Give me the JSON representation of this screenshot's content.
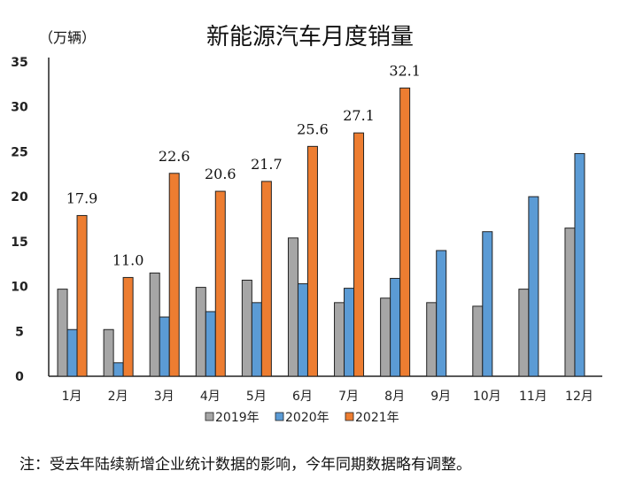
{
  "chart_data": {
    "type": "bar",
    "title": "新能源汽车月度销量",
    "ylabel": "（万辆）",
    "ylim": [
      0,
      35
    ],
    "yticks": [
      0,
      5,
      10,
      15,
      20,
      25,
      30,
      35
    ],
    "grid": false,
    "legend_position": "bottom",
    "categories": [
      "1月",
      "2月",
      "3月",
      "4月",
      "5月",
      "6月",
      "7月",
      "8月",
      "9月",
      "10月",
      "11月",
      "12月"
    ],
    "series": [
      {
        "name": "2019年",
        "color": "#a6a6a6",
        "values": [
          9.7,
          5.2,
          11.5,
          9.9,
          10.7,
          15.4,
          8.2,
          8.7,
          8.2,
          7.8,
          9.7,
          16.5
        ]
      },
      {
        "name": "2020年",
        "color": "#5b9bd5",
        "values": [
          5.2,
          1.5,
          6.6,
          7.2,
          8.2,
          10.3,
          9.8,
          10.9,
          14.0,
          16.1,
          20.0,
          24.8
        ]
      },
      {
        "name": "2021年",
        "color": "#ed7d31",
        "values": [
          17.9,
          11.0,
          22.6,
          20.6,
          21.7,
          25.6,
          27.1,
          32.1,
          null,
          null,
          null,
          null
        ],
        "data_labels": [
          "17.9",
          "11.0",
          "22.6",
          "20.6",
          "21.7",
          "25.6",
          "27.1",
          "32.1"
        ]
      }
    ],
    "note": "注：受去年陆续新增企业统计数据的影响，今年同期数据略有调整。"
  }
}
